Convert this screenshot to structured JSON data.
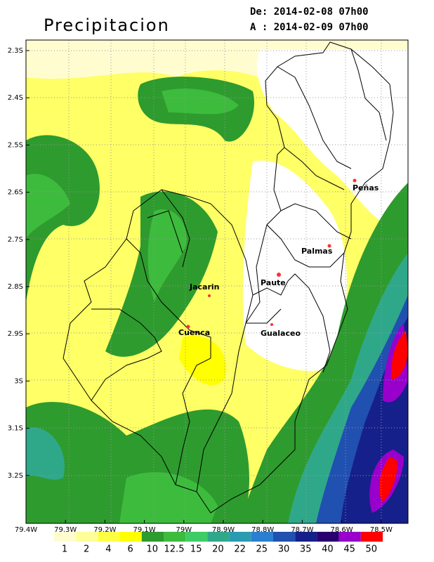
{
  "header": {
    "title": "Precipitacion",
    "from": "De: 2014-02-08 07h00",
    "to": "A : 2014-02-09 07h00"
  },
  "map": {
    "lat_labels": [
      "2.3S",
      "2.4S",
      "2.5S",
      "2.6S",
      "2.7S",
      "2.8S",
      "2.9S",
      "3S",
      "3.1S",
      "3.2S"
    ],
    "lon_labels": [
      "79.4W",
      "79.3W",
      "79.2W",
      "79.1W",
      "79W",
      "78.9W",
      "78.8W",
      "78.7W",
      "78.6W",
      "78.5W"
    ],
    "places": [
      "Peñas",
      "Palmas",
      "Paute",
      "Jacarin",
      "Cuenca",
      "Gualaceo"
    ]
  },
  "legend": {
    "labels": [
      "1",
      "2",
      "4",
      "6",
      "10",
      "12.5",
      "15",
      "20",
      "22",
      "25",
      "30",
      "35",
      "40",
      "45",
      "50"
    ],
    "colors": [
      "#fffdd0",
      "#ffff99",
      "#ffff44",
      "#ffff00",
      "#2e9b2e",
      "#3dbb3d",
      "#3ecc66",
      "#2fa88a",
      "#2a9bb0",
      "#2a7fd0",
      "#2050b0",
      "#15208a",
      "#2a0070",
      "#9900cc",
      "#ff0000"
    ]
  }
}
